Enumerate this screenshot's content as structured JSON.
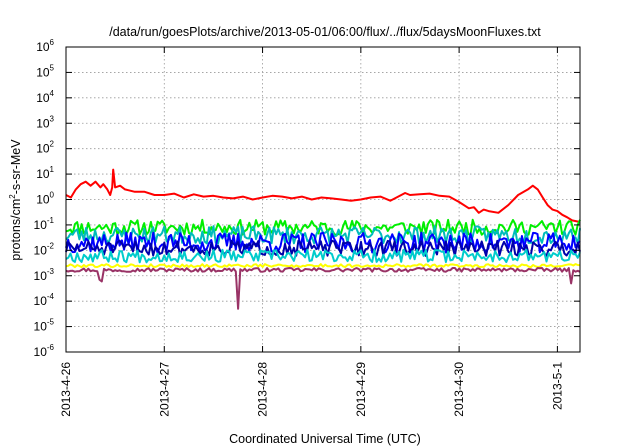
{
  "chart_data": {
    "type": "line",
    "title": "/data/run/goesPlots/archive/2013-05-01/06:00/flux/../flux/5daysMoonFluxes.txt",
    "xlabel": "Coordinated Universal Time (UTC)",
    "ylabel": {
      "base": "protons/cm",
      "sup": "2",
      "rest": "-s-sr-MeV"
    },
    "x_unit": "days since 2013-04-26 00:00 UTC",
    "xlim": [
      0,
      5.23
    ],
    "x_ticks": [
      {
        "x": 0,
        "label": "2013-4-26"
      },
      {
        "x": 1,
        "label": "2013-4-27"
      },
      {
        "x": 2,
        "label": "2013-4-28"
      },
      {
        "x": 3,
        "label": "2013-4-29"
      },
      {
        "x": 4,
        "label": "2013-4-30"
      },
      {
        "x": 5,
        "label": "2013-5-1"
      }
    ],
    "y_scale": "log",
    "ylim": [
      1e-06,
      1000000.0
    ],
    "y_ticks": [
      {
        "v": 1e-06,
        "base": "10",
        "exp": "-6"
      },
      {
        "v": 1e-05,
        "base": "10",
        "exp": "-5"
      },
      {
        "v": 0.0001,
        "base": "10",
        "exp": "-4"
      },
      {
        "v": 0.001,
        "base": "10",
        "exp": "-3"
      },
      {
        "v": 0.01,
        "base": "10",
        "exp": "-2"
      },
      {
        "v": 0.1,
        "base": "10",
        "exp": "-1"
      },
      {
        "v": 1.0,
        "base": "10",
        "exp": "0"
      },
      {
        "v": 10.0,
        "base": "10",
        "exp": "1"
      },
      {
        "v": 100.0,
        "base": "10",
        "exp": "2"
      },
      {
        "v": 1000.0,
        "base": "10",
        "exp": "3"
      },
      {
        "v": 10000.0,
        "base": "10",
        "exp": "4"
      },
      {
        "v": 100000.0,
        "base": "10",
        "exp": "5"
      },
      {
        "v": 1000000.0,
        "base": "10",
        "exp": "6"
      }
    ],
    "grid": true,
    "legend": "none",
    "series": [
      {
        "color": "#ff0000",
        "points": [
          [
            0,
            1.5
          ],
          [
            0.05,
            1.2
          ],
          [
            0.1,
            2.5
          ],
          [
            0.15,
            4
          ],
          [
            0.2,
            5
          ],
          [
            0.25,
            3.5
          ],
          [
            0.3,
            5
          ],
          [
            0.35,
            3
          ],
          [
            0.38,
            4
          ],
          [
            0.42,
            2.5
          ],
          [
            0.45,
            1.5
          ],
          [
            0.47,
            3
          ],
          [
            0.48,
            15
          ],
          [
            0.5,
            3
          ],
          [
            0.55,
            3.5
          ],
          [
            0.6,
            2.5
          ],
          [
            0.7,
            2
          ],
          [
            0.8,
            2
          ],
          [
            0.9,
            1.5
          ],
          [
            1.0,
            1.5
          ],
          [
            1.1,
            1.7
          ],
          [
            1.2,
            1.2
          ],
          [
            1.3,
            1.6
          ],
          [
            1.4,
            1.3
          ],
          [
            1.5,
            1.4
          ],
          [
            1.6,
            1.2
          ],
          [
            1.7,
            1.1
          ],
          [
            1.8,
            1.3
          ],
          [
            1.9,
            1.0
          ],
          [
            2.0,
            1.2
          ],
          [
            2.1,
            1.4
          ],
          [
            2.2,
            1.3
          ],
          [
            2.3,
            1.1
          ],
          [
            2.4,
            1.3
          ],
          [
            2.5,
            1.0
          ],
          [
            2.6,
            1.2
          ],
          [
            2.7,
            1.1
          ],
          [
            2.8,
            1.0
          ],
          [
            2.9,
            0.9
          ],
          [
            3.0,
            1.0
          ],
          [
            3.1,
            1.2
          ],
          [
            3.2,
            1.3
          ],
          [
            3.3,
            0.9
          ],
          [
            3.45,
            1.8
          ],
          [
            3.5,
            1.5
          ],
          [
            3.6,
            1.6
          ],
          [
            3.7,
            1.7
          ],
          [
            3.8,
            1.4
          ],
          [
            3.9,
            1.3
          ],
          [
            4.0,
            0.8
          ],
          [
            4.1,
            0.45
          ],
          [
            4.15,
            0.5
          ],
          [
            4.2,
            0.3
          ],
          [
            4.25,
            0.4
          ],
          [
            4.3,
            0.35
          ],
          [
            4.4,
            0.3
          ],
          [
            4.5,
            0.6
          ],
          [
            4.6,
            1.5
          ],
          [
            4.7,
            2.5
          ],
          [
            4.75,
            3.5
          ],
          [
            4.8,
            2.5
          ],
          [
            4.85,
            1.2
          ],
          [
            4.9,
            0.6
          ],
          [
            4.95,
            0.4
          ],
          [
            5.0,
            0.35
          ],
          [
            5.05,
            0.25
          ],
          [
            5.1,
            0.2
          ],
          [
            5.15,
            0.15
          ],
          [
            5.23,
            0.13
          ]
        ]
      },
      {
        "color": "#00ee00",
        "base": 0.08,
        "amp": 0.6,
        "seed": 11
      },
      {
        "color": "#00bbbb",
        "base": 0.04,
        "amp": 0.7,
        "seed": 23
      },
      {
        "color": "#0000ff",
        "base": 0.02,
        "amp": 0.8,
        "seed": 37
      },
      {
        "color": "#0000aa",
        "base": 0.012,
        "amp": 0.6,
        "seed": 51
      },
      {
        "color": "#00cccc",
        "base": 0.006,
        "amp": 0.5,
        "seed": 67
      },
      {
        "color": "#ffff00",
        "base": 0.0025,
        "amp": 0.12,
        "seed": 79
      },
      {
        "color": "#993366",
        "base": 0.0017,
        "amp": 0.15,
        "seed": 97,
        "dips": [
          [
            0.35,
            0.0007
          ],
          [
            0.37,
            0.0006
          ],
          [
            1.74,
            5e-05
          ],
          [
            5.15,
            0.0005
          ]
        ]
      }
    ]
  }
}
